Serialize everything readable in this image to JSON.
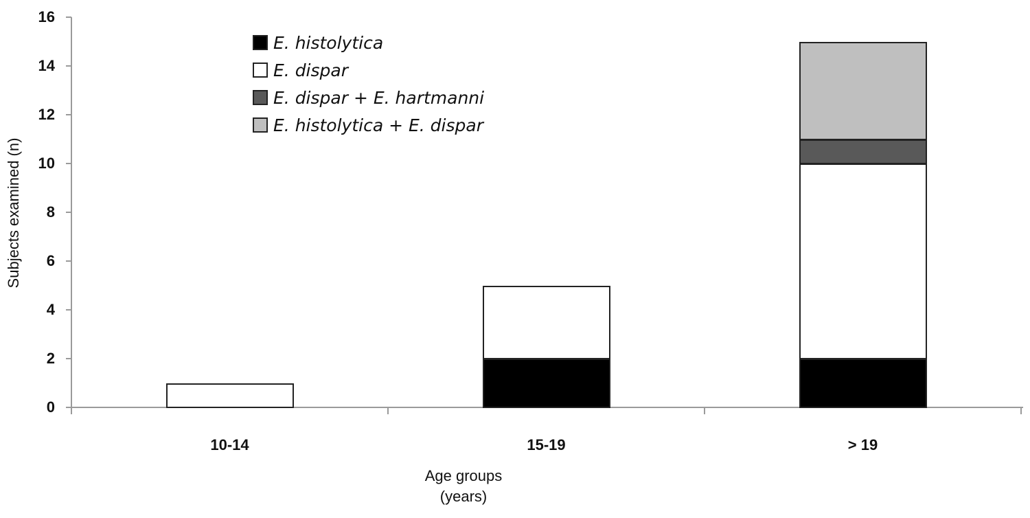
{
  "chart_data": {
    "type": "bar",
    "stacked": true,
    "title": "",
    "xlabel": "Age groups (years)",
    "xlabel_lines": [
      "Age groups",
      "(years)"
    ],
    "ylabel": "Subjects examined (n)",
    "ylim": [
      0,
      16
    ],
    "yticks": [
      0,
      2,
      4,
      6,
      8,
      10,
      12,
      14,
      16
    ],
    "grid": false,
    "legend_position": "upper-left (inside plot)",
    "categories": [
      "10-14",
      "15-19",
      "> 19"
    ],
    "series": [
      {
        "name": "E. histolytica",
        "color": "#000000",
        "values": [
          0,
          2,
          2
        ]
      },
      {
        "name": "E. dispar",
        "color": "#ffffff",
        "values": [
          1,
          3,
          8
        ]
      },
      {
        "name": "E. dispar + E. hartmanni",
        "color": "#595959",
        "values": [
          0,
          0,
          1
        ]
      },
      {
        "name": "E. histolytica + E. dispar",
        "color": "#bfbfbf",
        "values": [
          0,
          0,
          4
        ]
      }
    ],
    "totals": [
      1,
      5,
      15
    ]
  }
}
